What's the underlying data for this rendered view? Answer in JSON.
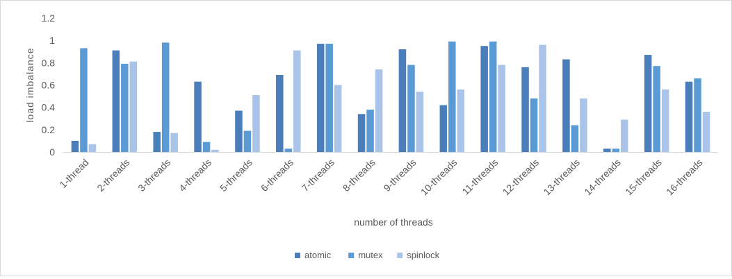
{
  "chart_data": {
    "type": "bar",
    "title": "",
    "xlabel": "number of threads",
    "ylabel": "load imbalance",
    "ylim": [
      0,
      1.2
    ],
    "yticks": [
      "0",
      "0.2",
      "0.4",
      "0.6",
      "0.8",
      "1",
      "1.2"
    ],
    "grid": false,
    "legend_position": "bottom",
    "categories": [
      "1-thread",
      "2-threads",
      "3-threads",
      "4-threads",
      "5-threads",
      "6-threads",
      "7-threads",
      "8-threads",
      "9-threads",
      "10-threads",
      "11-threads",
      "12-threads",
      "13-threads",
      "14-threads",
      "15-threads",
      "16-threads"
    ],
    "series": [
      {
        "name": "atomic",
        "color": "#4a7ebb",
        "values": [
          0.1,
          0.91,
          0.18,
          0.63,
          0.37,
          0.69,
          0.97,
          0.34,
          0.92,
          0.42,
          0.95,
          0.76,
          0.83,
          0.03,
          0.87,
          0.63
        ]
      },
      {
        "name": "mutex",
        "color": "#5b9bd5",
        "values": [
          0.93,
          0.79,
          0.98,
          0.09,
          0.19,
          0.03,
          0.97,
          0.38,
          0.78,
          0.99,
          0.99,
          0.48,
          0.24,
          0.03,
          0.77,
          0.66
        ]
      },
      {
        "name": "spinlock",
        "color": "#a9c4e8",
        "values": [
          0.07,
          0.81,
          0.17,
          0.02,
          0.51,
          0.91,
          0.6,
          0.74,
          0.54,
          0.56,
          0.78,
          0.96,
          0.48,
          0.29,
          0.56,
          0.36
        ]
      }
    ]
  }
}
